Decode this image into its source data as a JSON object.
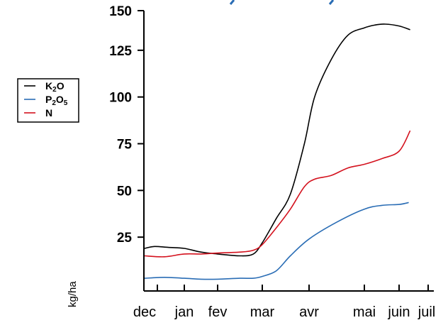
{
  "chart_data": {
    "type": "line",
    "ylabel": "kg/ha",
    "ylim": [
      0,
      150
    ],
    "y_ticks": [
      25,
      50,
      75,
      100,
      125,
      150
    ],
    "x_ticks": [
      "dec",
      "jan",
      "fev",
      "mar",
      "avr",
      "mai",
      "juin",
      "juil"
    ],
    "legend_position": "left",
    "grid": false,
    "series": [
      {
        "name": "K2O",
        "color": "#000000",
        "x": [
          0,
          0.25,
          0.6,
          1,
          1.5,
          2,
          2.5,
          2.8,
          3,
          3.3,
          3.6,
          3.9,
          4.1,
          4.4,
          4.7,
          5,
          5.3,
          5.6,
          6,
          6.4
        ],
        "y": [
          19,
          20,
          19.5,
          19,
          17,
          16,
          15,
          16,
          22,
          35,
          48,
          75,
          100,
          120,
          133,
          137,
          138.5,
          139,
          138,
          136
        ]
      },
      {
        "name": "P2O5",
        "color": "#2a6db5",
        "x": [
          0,
          0.5,
          1,
          1.5,
          2,
          2.5,
          2.8,
          3,
          3.3,
          3.6,
          4,
          4.5,
          5,
          5.5,
          6,
          6.35
        ],
        "y": [
          3,
          3.5,
          3,
          2.5,
          2.5,
          3,
          3,
          4,
          7,
          15,
          24,
          33,
          40,
          42,
          42.5,
          43.5
        ]
      },
      {
        "name": "N",
        "color": "#d4121e",
        "x": [
          0,
          0.5,
          1,
          1.5,
          2,
          2.5,
          2.8,
          3,
          3.3,
          3.6,
          3.9,
          4.1,
          4.4,
          4.7,
          5,
          5.5,
          6,
          6.4
        ],
        "y": [
          15,
          14.5,
          16,
          16,
          16.5,
          17,
          18,
          21,
          30,
          40,
          52,
          56,
          58,
          62,
          64,
          67,
          71,
          82
        ]
      }
    ]
  },
  "legend": {
    "items": [
      {
        "base": "K",
        "sub": "2",
        "base2": "O",
        "color": "#000000"
      },
      {
        "base": "P",
        "sub": "2",
        "base2": "O",
        "sub2": "5",
        "color": "#2a6db5"
      },
      {
        "base": "N",
        "sub": "",
        "base2": "",
        "color": "#d4121e"
      }
    ]
  }
}
